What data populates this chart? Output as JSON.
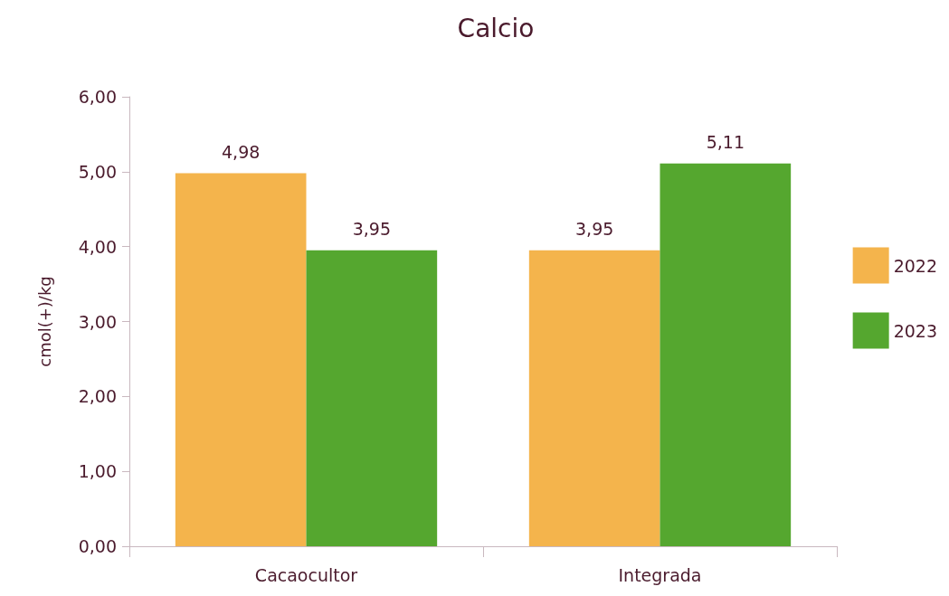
{
  "chart_data": {
    "type": "bar",
    "title": "Calcio",
    "ylabel": "cmol(+)/kg",
    "categories": [
      "Cacaocultor",
      "Integrada"
    ],
    "series": [
      {
        "name": "2022",
        "color": "#f4b44c",
        "values": [
          4.98,
          3.95
        ],
        "value_labels": [
          "4,98",
          "3,95"
        ]
      },
      {
        "name": "2023",
        "color": "#55a72f",
        "values": [
          3.95,
          5.11
        ],
        "value_labels": [
          "3,95",
          "5,11"
        ]
      }
    ],
    "ylim": [
      0,
      6
    ],
    "yticks": [
      {
        "value": 0,
        "label": "0,00"
      },
      {
        "value": 1,
        "label": "1,00"
      },
      {
        "value": 2,
        "label": "2,00"
      },
      {
        "value": 3,
        "label": "3,00"
      },
      {
        "value": 4,
        "label": "4,00"
      },
      {
        "value": 5,
        "label": "5,00"
      },
      {
        "value": 6,
        "label": "6,00"
      }
    ],
    "grid": false,
    "legend": "right"
  }
}
